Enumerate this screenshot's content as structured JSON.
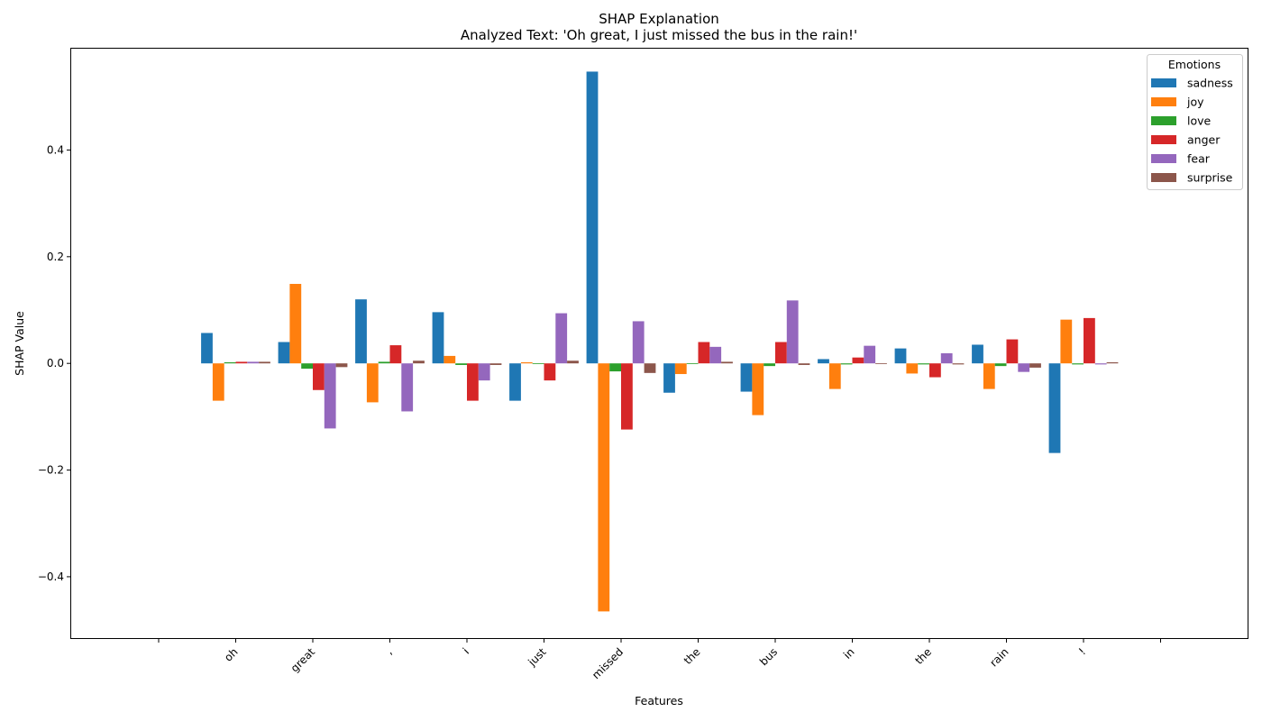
{
  "chart_data": {
    "type": "bar",
    "title": "SHAP Explanation",
    "subtitle": "Analyzed Text: 'Oh great, I just missed the bus in the rain!'",
    "xlabel": "Features",
    "ylabel": "SHAP Value",
    "categories": [
      "",
      "oh",
      "great",
      ",",
      "i",
      "just",
      "missed",
      "the",
      "bus",
      "in",
      "the",
      "rain",
      "!",
      ""
    ],
    "ylim": [
      -0.515,
      0.59
    ],
    "yticks": [
      -0.4,
      -0.2,
      0.0,
      0.2,
      0.4
    ],
    "ytick_labels": [
      "−0.4",
      "−0.2",
      "0.0",
      "0.2",
      "0.4"
    ],
    "grid": false,
    "legend": {
      "title": "Emotions",
      "placement": "top-right"
    },
    "series": [
      {
        "name": "sadness",
        "color": "#1f77b4",
        "values": [
          0,
          0.057,
          0.04,
          0.12,
          0.096,
          -0.07,
          0.547,
          -0.055,
          -0.053,
          0.008,
          0.028,
          0.035,
          -0.168,
          0
        ]
      },
      {
        "name": "joy",
        "color": "#ff7f0e",
        "values": [
          0,
          -0.07,
          0.149,
          -0.073,
          0.014,
          0.002,
          -0.465,
          -0.02,
          -0.097,
          -0.048,
          -0.019,
          -0.048,
          0.082,
          0
        ]
      },
      {
        "name": "love",
        "color": "#2ca02c",
        "values": [
          0,
          0.002,
          -0.01,
          0.003,
          -0.003,
          0.0,
          -0.015,
          0.0,
          -0.005,
          -0.002,
          -0.002,
          -0.005,
          -0.002,
          0
        ]
      },
      {
        "name": "anger",
        "color": "#d62728",
        "values": [
          0,
          0.003,
          -0.05,
          0.034,
          -0.07,
          -0.032,
          -0.124,
          0.04,
          0.04,
          0.011,
          -0.026,
          0.045,
          0.085,
          0
        ]
      },
      {
        "name": "fear",
        "color": "#9467bd",
        "values": [
          0,
          0.003,
          -0.122,
          -0.09,
          -0.032,
          0.094,
          0.079,
          0.031,
          0.118,
          0.033,
          0.019,
          -0.016,
          -0.002,
          0
        ]
      },
      {
        "name": "surprise",
        "color": "#8c564b",
        "values": [
          0,
          0.003,
          -0.007,
          0.005,
          -0.003,
          0.005,
          -0.018,
          0.003,
          -0.003,
          0.0,
          -0.002,
          -0.008,
          0.002,
          0
        ]
      }
    ]
  }
}
